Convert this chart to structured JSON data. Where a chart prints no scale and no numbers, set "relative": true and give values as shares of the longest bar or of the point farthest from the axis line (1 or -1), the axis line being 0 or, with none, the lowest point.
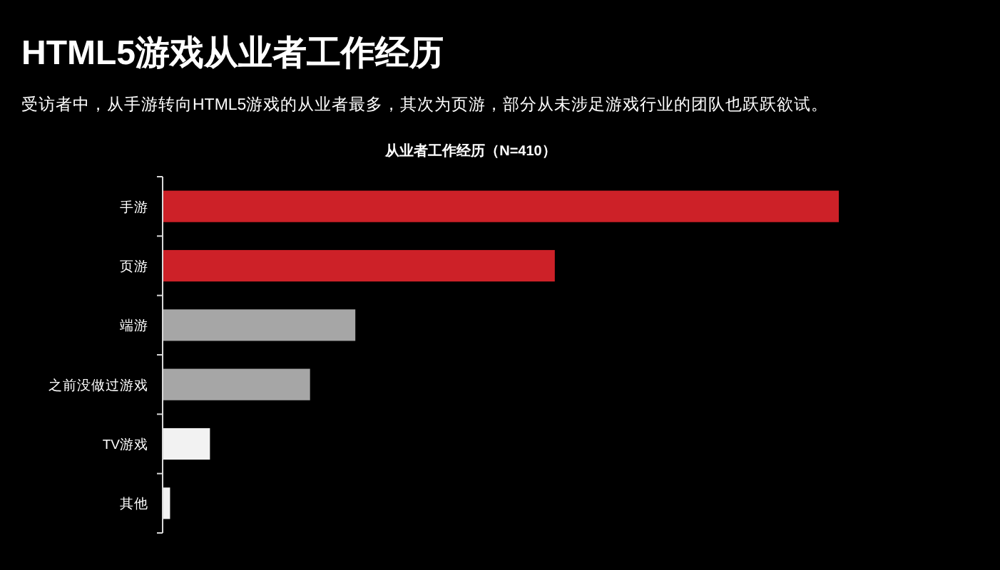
{
  "chart_data": {
    "type": "bar",
    "orientation": "horizontal",
    "relative": true,
    "title": "HTML5游戏从业者工作经历",
    "subtitle": "受访者中，从手游转向HTML5游戏的从业者最多，其次为页游，部分从未涉足游戏行业的团队也跃跃欲试。",
    "annotations": [
      "从业者工作经历（N=410）"
    ],
    "categories": [
      "手游",
      "页游",
      "端游",
      "之前没做过游戏",
      "TV游戏",
      "其他"
    ],
    "values": [
      1,
      0.58,
      0.285,
      0.218,
      0.07,
      0.011
    ],
    "colors": [
      "#cd2128",
      "#cd2128",
      "#a6a6a6",
      "#a6a6a6",
      "#f2f2f2",
      "#f2f2f2"
    ]
  }
}
